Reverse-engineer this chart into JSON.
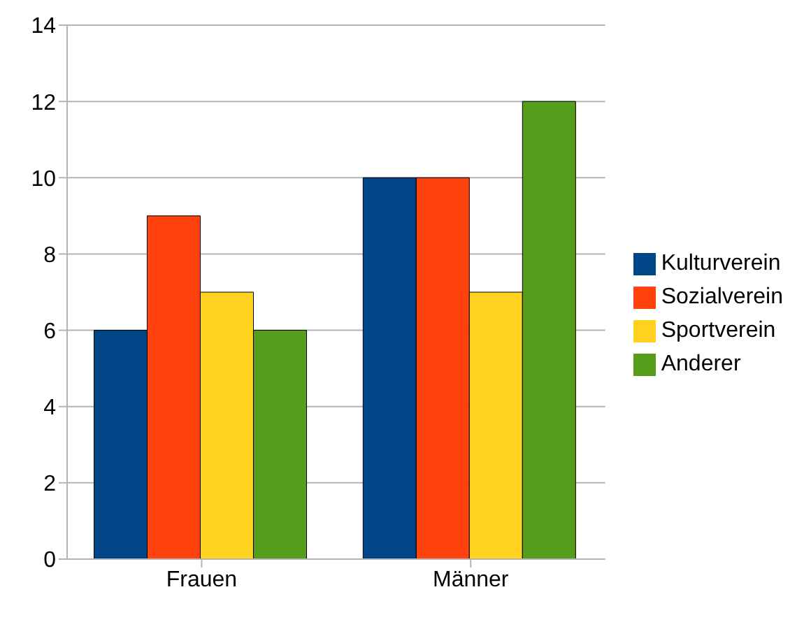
{
  "chart_data": {
    "type": "bar",
    "categories": [
      "Frauen",
      "Männer"
    ],
    "series": [
      {
        "name": "Kulturverein",
        "color": "#004586",
        "values": [
          6,
          10
        ]
      },
      {
        "name": "Sozialverein",
        "color": "#ff420e",
        "values": [
          9,
          10
        ]
      },
      {
        "name": "Sportverein",
        "color": "#ffd320",
        "values": [
          7,
          7
        ]
      },
      {
        "name": "Anderer",
        "color": "#579d1c",
        "values": [
          6,
          12
        ]
      }
    ],
    "ylim": [
      0,
      14
    ],
    "yticks": [
      0,
      2,
      4,
      6,
      8,
      10,
      12,
      14
    ],
    "grid": "y",
    "legend": "right"
  }
}
